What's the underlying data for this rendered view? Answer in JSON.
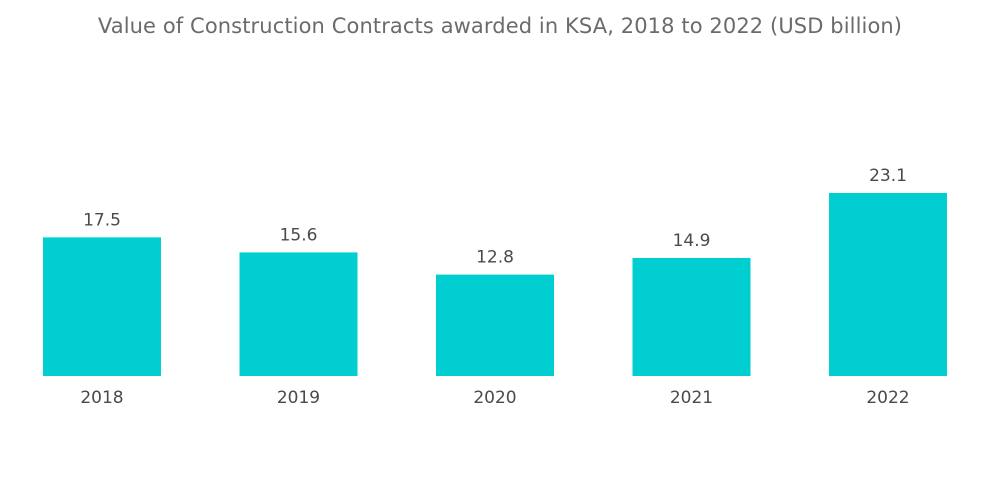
{
  "chart_data": {
    "type": "bar",
    "title": "Value of Construction Contracts awarded in KSA, 2018 to 2022 (USD billion)",
    "categories": [
      "2018",
      "2019",
      "2020",
      "2021",
      "2022"
    ],
    "values": [
      17.5,
      15.6,
      12.8,
      14.9,
      23.1
    ],
    "value_labels": [
      "17.5",
      "15.6",
      "12.8",
      "14.9",
      "23.1"
    ],
    "xlabel": "",
    "ylabel": "",
    "ylim": [
      0,
      23.1
    ],
    "grid": false,
    "legend": "none",
    "bar_color": "#00CED1"
  }
}
